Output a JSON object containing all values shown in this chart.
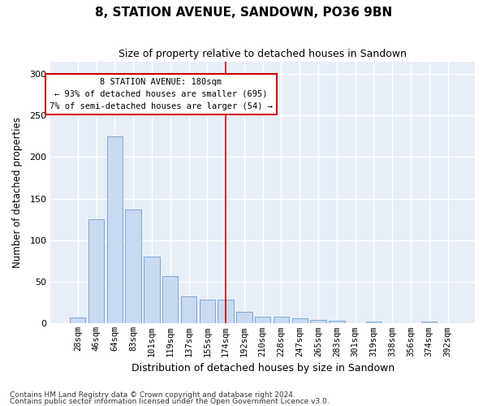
{
  "title": "8, STATION AVENUE, SANDOWN, PO36 9BN",
  "subtitle": "Size of property relative to detached houses in Sandown",
  "xlabel": "Distribution of detached houses by size in Sandown",
  "ylabel": "Number of detached properties",
  "bar_color": "#c9d9f0",
  "bar_edge_color": "#7aa8d8",
  "background_color": "#e8eef8",
  "categories": [
    "28sqm",
    "46sqm",
    "64sqm",
    "83sqm",
    "101sqm",
    "119sqm",
    "137sqm",
    "155sqm",
    "174sqm",
    "192sqm",
    "210sqm",
    "228sqm",
    "247sqm",
    "265sqm",
    "283sqm",
    "301sqm",
    "319sqm",
    "338sqm",
    "356sqm",
    "374sqm",
    "392sqm"
  ],
  "values": [
    7,
    125,
    225,
    137,
    80,
    57,
    33,
    29,
    29,
    14,
    8,
    8,
    6,
    4,
    3,
    0,
    2,
    0,
    0,
    2,
    0
  ],
  "vline_x": 8,
  "vline_color": "#cc0000",
  "annotation_text": "8 STATION AVENUE: 180sqm\n← 93% of detached houses are smaller (695)\n7% of semi-detached houses are larger (54) →",
  "annotation_box_color": "#ffffff",
  "annotation_box_edge": "#cc0000",
  "ylim": [
    0,
    315
  ],
  "yticks": [
    0,
    50,
    100,
    150,
    200,
    250,
    300
  ],
  "footer1": "Contains HM Land Registry data © Crown copyright and database right 2024.",
  "footer2": "Contains public sector information licensed under the Open Government Licence v3.0."
}
